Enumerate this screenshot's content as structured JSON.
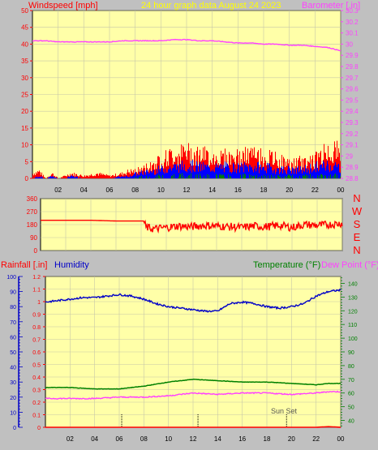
{
  "header": {
    "wind_title": "Windspeed [mph]",
    "date_title": "24 hour graph data   August 24 2023",
    "baro_title": "Barometer [.in]"
  },
  "lower_header": {
    "rain_title": "Rainfall [.in]",
    "humidity_title": "Humidity",
    "temp_title": "Temperature (°F)",
    "dew_title": "Dew Point (°F)"
  },
  "direction_letters": [
    "N",
    "W",
    "S",
    "E",
    "N"
  ],
  "sunset_label": "Sun Set",
  "colors": {
    "background": "#c0c0c0",
    "plot": "#ffffa8",
    "grid": "#c8c8a8",
    "wind_avg": "#0000ff",
    "wind_gust": "#ff0000",
    "wind_green": "#008000",
    "barometer": "#ff40ff",
    "direction": "#ff0000",
    "humidity": "#0000c8",
    "temperature": "#008000",
    "dewpoint": "#ff40ff",
    "rainfall": "#ff0000"
  },
  "chart_data": [
    {
      "type": "line",
      "name": "wind_barometer",
      "x_ticks": [
        "02",
        "04",
        "06",
        "08",
        "10",
        "12",
        "14",
        "16",
        "18",
        "20",
        "22",
        "00"
      ],
      "x_range": [
        0,
        24
      ],
      "y_left_ticks": [
        "0",
        "5",
        "10",
        "15",
        "20",
        "25",
        "30",
        "35",
        "40",
        "45",
        "50"
      ],
      "y_left_range": [
        0,
        50
      ],
      "y_right_ticks": [
        "28.8",
        "28.9",
        "29",
        "29.1",
        "29.2",
        "29.3",
        "29.4",
        "29.5",
        "29.6",
        "29.7",
        "29.8",
        "29.9",
        "30",
        "30.1",
        "30.2",
        "30.3"
      ],
      "y_right_range": [
        28.8,
        30.3
      ],
      "barometer": {
        "x": [
          0,
          1,
          2,
          3,
          4,
          5,
          6,
          7,
          8,
          9,
          10,
          11,
          12,
          13,
          14,
          15,
          16,
          17,
          18,
          19,
          20,
          21,
          22,
          23,
          24
        ],
        "y": [
          30.03,
          30.03,
          30.02,
          30.02,
          30.02,
          30.02,
          30.02,
          30.03,
          30.03,
          30.03,
          30.03,
          30.04,
          30.04,
          30.03,
          30.03,
          30.02,
          30.01,
          30.01,
          30.0,
          30.0,
          29.99,
          29.99,
          29.98,
          29.97,
          29.94
        ]
      },
      "wind_avg_max": {
        "x": [
          0,
          0.5,
          1,
          1.5,
          2,
          2.5,
          3,
          4,
          5,
          6,
          7,
          7.5,
          8,
          9,
          10,
          11,
          12,
          13,
          14,
          15,
          16,
          17,
          18,
          19,
          20,
          21,
          22,
          23,
          24
        ],
        "y": [
          0,
          1,
          0,
          1,
          0,
          0,
          1,
          0,
          0,
          0,
          1,
          1,
          2,
          3,
          4,
          5,
          6,
          5,
          5,
          5,
          5,
          5,
          5,
          4,
          4,
          4,
          5,
          6,
          5
        ]
      },
      "wind_gust_max": {
        "x": [
          0,
          0.5,
          1,
          1.5,
          2,
          2.5,
          3,
          4,
          5,
          6,
          7,
          7.5,
          8,
          9,
          10,
          11,
          12,
          13,
          14,
          15,
          16,
          17,
          18,
          19,
          20,
          21,
          22,
          23,
          24
        ],
        "y": [
          2,
          3,
          0,
          2,
          0,
          1,
          2,
          1,
          2,
          1,
          2,
          3,
          3,
          5,
          8,
          10,
          11,
          10,
          9,
          9,
          9,
          10,
          9,
          8,
          6,
          7,
          8,
          12,
          11
        ]
      }
    },
    {
      "type": "line",
      "name": "wind_direction",
      "x_range": [
        0,
        24
      ],
      "y_ticks": [
        "0",
        "90",
        "180",
        "270",
        "360"
      ],
      "y_range": [
        0,
        360
      ],
      "x": [
        0,
        2,
        4,
        6,
        7,
        8.2,
        8.4,
        9,
        10,
        11,
        12,
        13,
        14,
        15,
        16,
        17,
        18,
        19,
        20,
        21,
        22,
        23,
        24
      ],
      "y": [
        210,
        210,
        210,
        205,
        205,
        205,
        160,
        150,
        160,
        170,
        165,
        175,
        170,
        165,
        160,
        170,
        165,
        175,
        160,
        180,
        175,
        180,
        190
      ]
    },
    {
      "type": "line",
      "name": "humidity_temp_rain",
      "x_ticks": [
        "02",
        "04",
        "06",
        "08",
        "10",
        "12",
        "14",
        "16",
        "18",
        "20",
        "22",
        "00"
      ],
      "x_range": [
        0,
        24
      ],
      "rain_ticks": [
        "0",
        "0.1",
        "0.2",
        "0.3",
        "0.4",
        "0.5",
        "0.6",
        "0.7",
        "0.8",
        "0.9",
        "1",
        "1.1",
        "1.2"
      ],
      "rain_range": [
        0,
        1.2
      ],
      "humidity_ticks": [
        "0",
        "10",
        "20",
        "30",
        "40",
        "50",
        "60",
        "70",
        "80",
        "90",
        "100"
      ],
      "humidity_range": [
        0,
        100
      ],
      "temp_ticks": [
        "40",
        "50",
        "60",
        "70",
        "80",
        "90",
        "100",
        "110",
        "120",
        "130",
        "140"
      ],
      "temp_range": [
        35,
        145
      ],
      "humidity": {
        "x": [
          0,
          1,
          2,
          3,
          4,
          5,
          6,
          7,
          8,
          9,
          10,
          11,
          12,
          13,
          14,
          15,
          16,
          17,
          18,
          19,
          20,
          21,
          22,
          23,
          24
        ],
        "y": [
          83,
          84,
          85,
          86,
          86,
          87,
          88,
          87,
          85,
          82,
          80,
          79,
          78,
          77,
          77,
          82,
          83,
          82,
          80,
          79,
          80,
          82,
          87,
          90,
          91
        ]
      },
      "temperature": {
        "x": [
          0,
          2,
          4,
          6,
          8,
          10,
          12,
          14,
          16,
          18,
          20,
          22,
          23,
          24
        ],
        "y": [
          64,
          64,
          63,
          63,
          65,
          68,
          70,
          69,
          68,
          68,
          67,
          66,
          67,
          67
        ]
      },
      "dewpoint": {
        "x": [
          0,
          2,
          4,
          6,
          8,
          10,
          12,
          14,
          16,
          18,
          20,
          22,
          23,
          24
        ],
        "y": [
          56,
          56,
          56,
          57,
          57,
          58,
          60,
          59,
          60,
          60,
          59,
          60,
          61,
          61
        ]
      },
      "rainfall": {
        "x": [
          0,
          22,
          23,
          24
        ],
        "y": [
          0,
          0,
          0.005,
          0
        ]
      },
      "sunset_x": 19.6
    }
  ]
}
